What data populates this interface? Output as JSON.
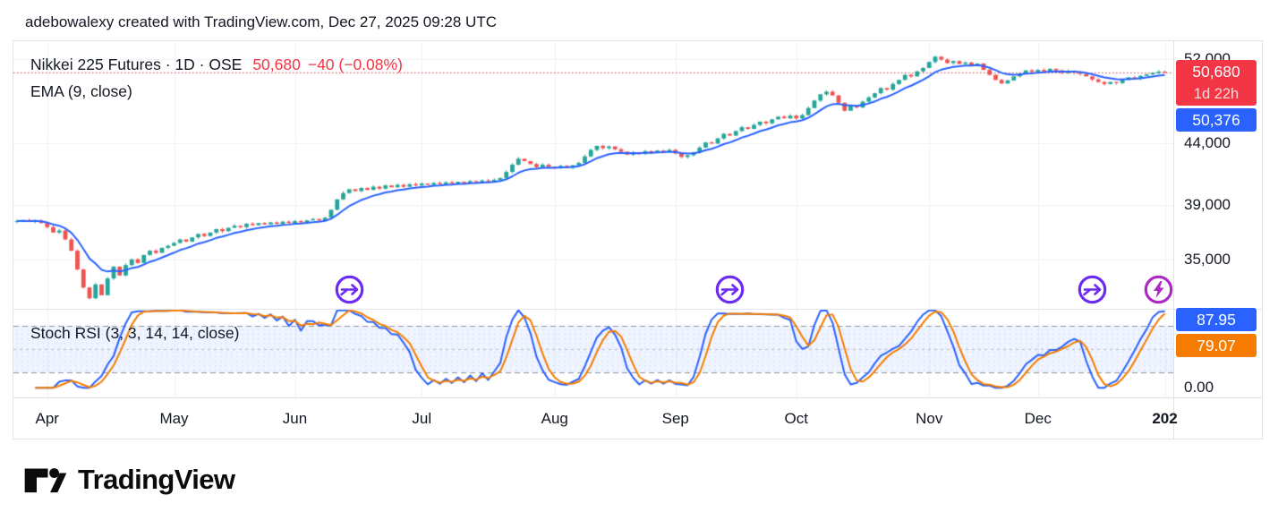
{
  "header": {
    "attribution": "adebowalexy created with TradingView.com, Dec 27, 2025 09:28 UTC"
  },
  "legend": {
    "symbol": "Nikkei 225 Futures · 1D · OSE",
    "last": "50,680",
    "change": "−40 (−0.08%)",
    "ema": "EMA (9, close)",
    "stochrsi": "Stoch RSI (3, 3, 14, 14, close)"
  },
  "axis": {
    "last_badge": {
      "price": "50,680",
      "countdown": "1d 22h",
      "color": "#f23645"
    },
    "ema_badge": {
      "value": "50,376",
      "color": "#2962ff"
    },
    "k_badge": {
      "value": "87.95",
      "color": "#2962ff"
    },
    "d_badge": {
      "value": "79.07",
      "color": "#f57c00"
    },
    "zero_label": "0.00"
  },
  "footer": {
    "logo_text": "TradingView"
  },
  "colors": {
    "up": "#26a69a",
    "down": "#ef5350",
    "ema": "#2962ff",
    "stoch_k": "#2962ff",
    "stoch_d": "#f57c00",
    "last_line": "#f23645",
    "grid": "#eef1f7",
    "band_fill": "rgba(41,98,255,0.07)",
    "band_dots": "rgba(41,98,255,0.16)",
    "dash_outer": "#8d919c",
    "dash_mid": "#b4b8c1",
    "marker_arrow": "#6c2bf2",
    "marker_bolt": "#ae28c3"
  },
  "chart_data": {
    "type": "candlestick",
    "title": "Nikkei 225 Futures · 1D · OSE",
    "symbol": "Nikkei 225 Futures",
    "interval": "1D",
    "exchange": "OSE",
    "last_price": 50680,
    "change": -40,
    "change_pct": -0.08,
    "scale": "log",
    "price_axis_ticks": [
      52000,
      44000,
      39000,
      35000
    ],
    "x_range": "late Mar 2025 – Dec 27 2025, daily bars",
    "months": [
      {
        "label": "Apr",
        "bar": 5
      },
      {
        "label": "May",
        "bar": 26
      },
      {
        "label": "Jun",
        "bar": 46
      },
      {
        "label": "Jul",
        "bar": 67
      },
      {
        "label": "Aug",
        "bar": 89
      },
      {
        "label": "Sep",
        "bar": 109
      },
      {
        "label": "Oct",
        "bar": 129
      },
      {
        "label": "Nov",
        "bar": 151
      },
      {
        "label": "Dec",
        "bar": 169
      },
      {
        "label": "202",
        "bar": 190,
        "bold": true
      }
    ],
    "closes": [
      37750,
      37820,
      37700,
      37780,
      37600,
      37300,
      36900,
      37050,
      36400,
      35600,
      34300,
      33100,
      32400,
      33300,
      32600,
      33700,
      34500,
      33900,
      34600,
      35000,
      34750,
      35300,
      35600,
      35450,
      35800,
      35950,
      36150,
      36400,
      36250,
      36550,
      36800,
      36650,
      36900,
      37150,
      37000,
      37250,
      37400,
      37300,
      37550,
      37450,
      37600,
      37500,
      37650,
      37550,
      37700,
      37600,
      37750,
      37650,
      37800,
      37900,
      37800,
      38000,
      38600,
      39400,
      39900,
      40200,
      40050,
      40300,
      40150,
      40400,
      40250,
      40500,
      40350,
      40550,
      40400,
      40600,
      40500,
      40650,
      40550,
      40700,
      40600,
      40750,
      40650,
      40800,
      40700,
      40850,
      40750,
      40900,
      40800,
      40950,
      41100,
      41600,
      42200,
      42700,
      42500,
      42250,
      42000,
      42200,
      42050,
      41900,
      42100,
      41950,
      42150,
      42350,
      42900,
      43450,
      43800,
      43600,
      43750,
      43500,
      43300,
      43050,
      43250,
      43100,
      43350,
      43200,
      43400,
      43300,
      43450,
      43150,
      42850,
      43000,
      43250,
      43650,
      44100,
      44000,
      44450,
      44850,
      44700,
      45100,
      45450,
      45300,
      45650,
      45950,
      45800,
      46150,
      46400,
      46250,
      46500,
      46250,
      46550,
      47200,
      47900,
      48500,
      48750,
      48400,
      47700,
      46950,
      47400,
      47250,
      47800,
      48200,
      48600,
      49100,
      48950,
      49500,
      49900,
      50400,
      50250,
      50750,
      51100,
      51700,
      52250,
      51950,
      51600,
      51800,
      51500,
      51650,
      51350,
      51550,
      50900,
      50400,
      49900,
      49550,
      49850,
      50250,
      50550,
      50850,
      50700,
      50900,
      50750,
      51000,
      50850,
      50600,
      50800,
      50650,
      50500,
      50250,
      49950,
      49700,
      49500,
      49700,
      49600,
      49900,
      50150,
      50050,
      50300,
      50450,
      50600,
      50720,
      50680
    ],
    "overlays": [
      {
        "name": "EMA",
        "params": [
          9,
          "close"
        ],
        "color": "#2962ff",
        "last_value": 50376
      }
    ],
    "indicators": [
      {
        "name": "Stoch RSI",
        "params": [
          3,
          3,
          14,
          14,
          "close"
        ],
        "range": [
          0,
          100
        ],
        "bands": [
          80,
          50,
          20
        ],
        "k_last": 87.95,
        "d_last": 79.07,
        "k_color": "#2962ff",
        "d_color": "#f57c00"
      }
    ],
    "markers": [
      {
        "icon": "merge-arrow",
        "bar": 55
      },
      {
        "icon": "merge-arrow",
        "bar": 118
      },
      {
        "icon": "merge-arrow",
        "bar": 178
      },
      {
        "icon": "lightning-bolt",
        "bar": 189
      }
    ]
  }
}
